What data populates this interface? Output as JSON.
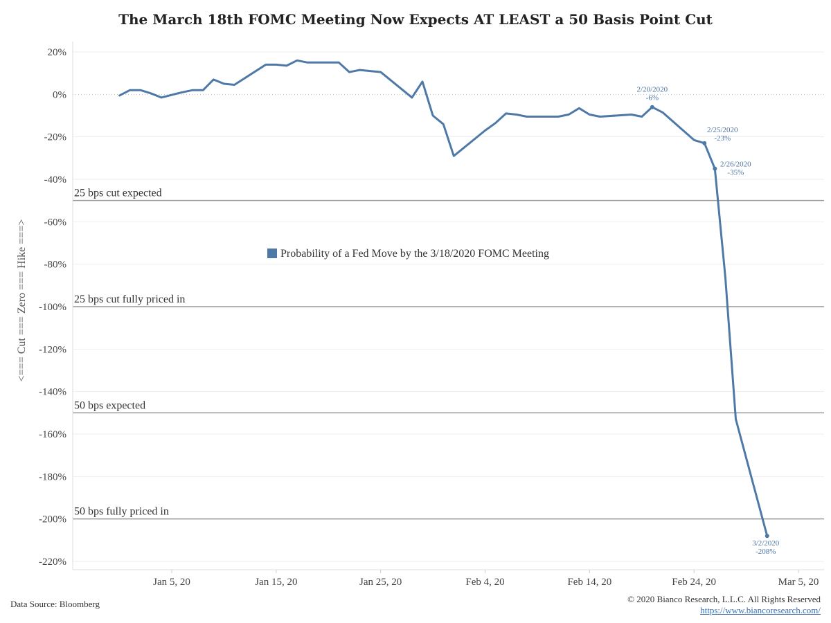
{
  "chart_data": {
    "type": "line",
    "title": "The March 18th FOMC Meeting Now Expects AT LEAST a 50 Basis Point Cut",
    "ylabel": "<=== Cut === Zero === Hike ===>",
    "xlabel": "",
    "ylim": [
      -220,
      20
    ],
    "y_ticks": [
      "20%",
      "0%",
      "-20%",
      "-40%",
      "-60%",
      "-80%",
      "-100%",
      "-120%",
      "-140%",
      "-160%",
      "-180%",
      "-200%",
      "-220%"
    ],
    "y_tick_values": [
      20,
      0,
      -20,
      -40,
      -60,
      -80,
      -100,
      -120,
      -140,
      -160,
      -180,
      -200,
      -220
    ],
    "x_ticks": [
      "Jan 5, 20",
      "Jan 15, 20",
      "Jan 25, 20",
      "Feb 4, 20",
      "Feb 14, 20",
      "Feb 24, 20",
      "Mar 5, 20"
    ],
    "x_tick_dates": [
      "2020-01-05",
      "2020-01-15",
      "2020-01-25",
      "2020-02-04",
      "2020-02-14",
      "2020-02-24",
      "2020-03-05"
    ],
    "series": [
      {
        "name": "Probability of a Fed Move by the 3/18/2020 FOMC Meeting",
        "color": "#4e79a7",
        "points": [
          {
            "x": "2019-12-31",
            "y": -0.5
          },
          {
            "x": "2020-01-01",
            "y": 2
          },
          {
            "x": "2020-01-02",
            "y": 2
          },
          {
            "x": "2020-01-03",
            "y": 0.5
          },
          {
            "x": "2020-01-04",
            "y": -1.5
          },
          {
            "x": "2020-01-06",
            "y": 1
          },
          {
            "x": "2020-01-07",
            "y": 2
          },
          {
            "x": "2020-01-08",
            "y": 2
          },
          {
            "x": "2020-01-09",
            "y": 7
          },
          {
            "x": "2020-01-10",
            "y": 5
          },
          {
            "x": "2020-01-11",
            "y": 4.5
          },
          {
            "x": "2020-01-14",
            "y": 14
          },
          {
            "x": "2020-01-15",
            "y": 14
          },
          {
            "x": "2020-01-16",
            "y": 13.5
          },
          {
            "x": "2020-01-17",
            "y": 16
          },
          {
            "x": "2020-01-18",
            "y": 15
          },
          {
            "x": "2020-01-21",
            "y": 15
          },
          {
            "x": "2020-01-22",
            "y": 10.5
          },
          {
            "x": "2020-01-23",
            "y": 11.5
          },
          {
            "x": "2020-01-25",
            "y": 10.5
          },
          {
            "x": "2020-01-28",
            "y": -1.5
          },
          {
            "x": "2020-01-29",
            "y": 6
          },
          {
            "x": "2020-01-30",
            "y": -10
          },
          {
            "x": "2020-01-31",
            "y": -14
          },
          {
            "x": "2020-02-01",
            "y": -29
          },
          {
            "x": "2020-02-04",
            "y": -17
          },
          {
            "x": "2020-02-05",
            "y": -13.5
          },
          {
            "x": "2020-02-06",
            "y": -9
          },
          {
            "x": "2020-02-07",
            "y": -9.5
          },
          {
            "x": "2020-02-08",
            "y": -10.5
          },
          {
            "x": "2020-02-10",
            "y": -10.5
          },
          {
            "x": "2020-02-11",
            "y": -10.5
          },
          {
            "x": "2020-02-12",
            "y": -9.5
          },
          {
            "x": "2020-02-13",
            "y": -6.5
          },
          {
            "x": "2020-02-14",
            "y": -9.5
          },
          {
            "x": "2020-02-15",
            "y": -10.5
          },
          {
            "x": "2020-02-18",
            "y": -9.5
          },
          {
            "x": "2020-02-19",
            "y": -10.5
          },
          {
            "x": "2020-02-20",
            "y": -6
          },
          {
            "x": "2020-02-21",
            "y": -8.5
          },
          {
            "x": "2020-02-24",
            "y": -21.5
          },
          {
            "x": "2020-02-25",
            "y": -23
          },
          {
            "x": "2020-02-26",
            "y": -35
          },
          {
            "x": "2020-02-27",
            "y": -86
          },
          {
            "x": "2020-02-28",
            "y": -153
          },
          {
            "x": "2020-03-02",
            "y": -208
          }
        ]
      }
    ],
    "reference_lines": [
      {
        "y": -50,
        "label": "25 bps cut expected"
      },
      {
        "y": -100,
        "label": "25 bps cut fully priced in"
      },
      {
        "y": -150,
        "label": "50 bps expected"
      },
      {
        "y": -200,
        "label": "50 bps fully priced in"
      }
    ],
    "annotations": [
      {
        "x": "2020-02-20",
        "y": -6,
        "date": "2/20/2020",
        "value": "-6%"
      },
      {
        "x": "2020-02-25",
        "y": -23,
        "date": "2/25/2020",
        "value": "-23%"
      },
      {
        "x": "2020-02-26",
        "y": -35,
        "date": "2/26/2020",
        "value": "-35%"
      },
      {
        "x": "2020-03-02",
        "y": -208,
        "date": "3/2/2020",
        "value": "-208%"
      }
    ],
    "legend_position": "center"
  },
  "footer": {
    "source": "Data Source: Bloomberg",
    "copyright": "© 2020 Bianco Research, L.L.C. All Rights Reserved",
    "url": "https://www.biancoresearch.com/"
  }
}
